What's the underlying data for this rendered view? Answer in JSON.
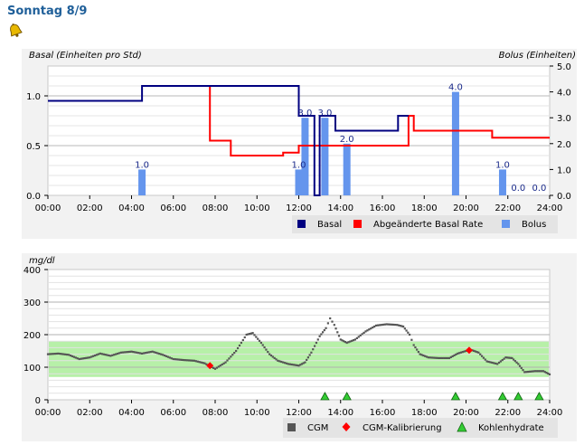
{
  "header": {
    "title": "Sonntag 8/9",
    "icon": "bell-icon"
  },
  "colors": {
    "basal": "#000080",
    "modified_basal": "#ff0000",
    "bolus": "#6495ed",
    "cgm": "#555555",
    "calibration": "#ff0000",
    "carbs": "#33cc33",
    "target_band": "#b7f0a8"
  },
  "chart_data": [
    {
      "type": "line",
      "ylabel": "Basal (Einheiten pro Std)",
      "y2label": "Bolus (Einheiten)",
      "ylim": [
        0,
        1.3
      ],
      "y2lim": [
        0,
        5
      ],
      "yticks": [
        "0.0",
        "0.5",
        "1.0"
      ],
      "y2ticks": [
        "0.0",
        "1.0",
        "2.0",
        "3.0",
        "4.0",
        "5.0"
      ],
      "xticks": [
        "00:00",
        "02:00",
        "04:00",
        "06:00",
        "08:00",
        "10:00",
        "12:00",
        "14:00",
        "16:00",
        "18:00",
        "20:00",
        "22:00",
        "24:00"
      ],
      "grid": true,
      "legend": {
        "position": "bottom-right",
        "items": [
          "Basal",
          "Abgeänderte Basal Rate",
          "Bolus"
        ]
      },
      "series": [
        {
          "name": "Basal",
          "type": "step",
          "points": [
            [
              0,
              0.95
            ],
            [
              4.5,
              0.95
            ],
            [
              4.5,
              1.1
            ],
            [
              7.75,
              1.1
            ],
            [
              7.75,
              1.1
            ],
            [
              12,
              1.1
            ],
            [
              12,
              0.8
            ],
            [
              12.75,
              0.8
            ],
            [
              12.75,
              0.0
            ],
            [
              13,
              0.0
            ],
            [
              13,
              0.8
            ],
            [
              13.75,
              0.8
            ],
            [
              13.75,
              0.65
            ],
            [
              16.75,
              0.65
            ],
            [
              16.75,
              0.8
            ],
            [
              17.25,
              0.8
            ]
          ]
        },
        {
          "name": "Abgeänderte Basal Rate",
          "type": "step",
          "points": [
            [
              7.75,
              1.1
            ],
            [
              7.75,
              0.55
            ],
            [
              8.75,
              0.55
            ],
            [
              8.75,
              0.4
            ],
            [
              11.25,
              0.4
            ],
            [
              11.25,
              0.43
            ],
            [
              12,
              0.43
            ],
            [
              12,
              0.5
            ],
            [
              17.25,
              0.5
            ],
            [
              17.25,
              0.8
            ],
            [
              17.5,
              0.8
            ],
            [
              17.5,
              0.65
            ],
            [
              21.25,
              0.65
            ],
            [
              21.25,
              0.58
            ],
            [
              24,
              0.58
            ]
          ]
        },
        {
          "name": "Bolus",
          "type": "bar",
          "axis": "y2",
          "x": [
            4.5,
            12,
            12.3,
            13.25,
            14.3,
            19.5,
            21.75,
            22.5,
            23.5
          ],
          "values": [
            1.0,
            1.0,
            3.0,
            3.0,
            2.0,
            4.0,
            1.0,
            0.0,
            0.0
          ],
          "labels": [
            "1.0",
            "1.0",
            "3.0",
            "3.0",
            "2.0",
            "4.0",
            "1.0",
            "0.0",
            "0.0"
          ]
        }
      ]
    },
    {
      "type": "scatter",
      "ylabel": "mg/dl",
      "ylim": [
        0,
        400
      ],
      "yticks": [
        "0",
        "100",
        "200",
        "300",
        "400"
      ],
      "xticks": [
        "00:00",
        "02:00",
        "04:00",
        "06:00",
        "08:00",
        "10:00",
        "12:00",
        "14:00",
        "16:00",
        "18:00",
        "20:00",
        "22:00",
        "24:00"
      ],
      "target_range": [
        70,
        180
      ],
      "grid": true,
      "legend": {
        "position": "bottom-right",
        "items": [
          "CGM",
          "CGM-Kalibrierung",
          "Kohlenhydrate"
        ]
      },
      "series": [
        {
          "name": "CGM",
          "points": [
            [
              0,
              140
            ],
            [
              0.5,
              142
            ],
            [
              1.0,
              138
            ],
            [
              1.5,
              125
            ],
            [
              2.0,
              130
            ],
            [
              2.5,
              142
            ],
            [
              3.0,
              135
            ],
            [
              3.5,
              145
            ],
            [
              4.0,
              148
            ],
            [
              4.5,
              142
            ],
            [
              5.0,
              148
            ],
            [
              5.5,
              138
            ],
            [
              6.0,
              125
            ],
            [
              6.5,
              122
            ],
            [
              7.0,
              120
            ],
            [
              7.5,
              112
            ],
            [
              7.75,
              103
            ],
            [
              8.0,
              95
            ],
            [
              8.5,
              115
            ],
            [
              9.0,
              150
            ],
            [
              9.5,
              200
            ],
            [
              9.8,
              205
            ],
            [
              10.2,
              175
            ],
            [
              10.6,
              140
            ],
            [
              11.0,
              120
            ],
            [
              11.5,
              110
            ],
            [
              12.0,
              105
            ],
            [
              12.3,
              115
            ],
            [
              12.6,
              145
            ],
            [
              13.0,
              195
            ],
            [
              13.3,
              220
            ],
            [
              13.5,
              250
            ],
            [
              13.7,
              230
            ],
            [
              14.0,
              185
            ],
            [
              14.3,
              175
            ],
            [
              14.7,
              185
            ],
            [
              15.2,
              210
            ],
            [
              15.7,
              228
            ],
            [
              16.2,
              232
            ],
            [
              16.7,
              230
            ],
            [
              17.0,
              225
            ],
            [
              17.3,
              200
            ],
            [
              17.5,
              168
            ],
            [
              17.8,
              140
            ],
            [
              18.2,
              130
            ],
            [
              18.7,
              128
            ],
            [
              19.2,
              128
            ],
            [
              19.6,
              142
            ],
            [
              20.0,
              150
            ],
            [
              20.3,
              152
            ],
            [
              20.6,
              145
            ],
            [
              21.0,
              118
            ],
            [
              21.5,
              110
            ],
            [
              21.9,
              130
            ],
            [
              22.2,
              128
            ],
            [
              22.5,
              110
            ],
            [
              22.8,
              85
            ],
            [
              23.3,
              88
            ],
            [
              23.7,
              88
            ],
            [
              24.0,
              78
            ]
          ]
        },
        {
          "name": "CGM-Kalibrierung",
          "points": [
            [
              7.75,
              105
            ],
            [
              20.15,
              152
            ]
          ]
        },
        {
          "name": "Kohlenhydrate",
          "x": [
            13.25,
            14.3,
            19.5,
            21.75,
            22.5,
            23.5
          ]
        }
      ]
    }
  ]
}
